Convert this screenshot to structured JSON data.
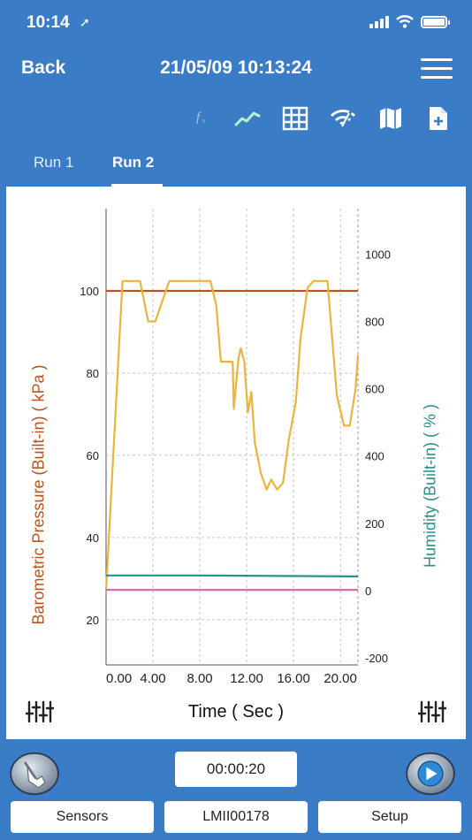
{
  "status_bar": {
    "time": "10:14",
    "location_arrow": "➚"
  },
  "nav": {
    "back_label": "Back",
    "title": "21/05/09 10:13:24"
  },
  "toolbar": {
    "icons": [
      "function-icon",
      "line-graph-icon",
      "table-icon",
      "wireless-icon",
      "map-icon",
      "add-page-icon"
    ],
    "function_symbol": "fx"
  },
  "tabs": [
    {
      "label": "Run 1",
      "active": false
    },
    {
      "label": "Run 2",
      "active": true
    }
  ],
  "colors": {
    "header": "#3a7cc6",
    "pressure": "#b5551f",
    "humidity": "#2d9089",
    "series_yellow": "#e8b53e",
    "series_teal": "#2d8f8f",
    "series_pink": "#d86ab8"
  },
  "chart_data": {
    "type": "line",
    "xlabel": "Time ( Sec )",
    "ylabel_left": "Barometric Pressure (Built-in) ( kPa )",
    "ylabel_right": "Humidity (Built-in) ( % )",
    "x_ticks": [
      "0.00",
      "4.00",
      "8.00",
      "12.00",
      "16.00",
      "20.00"
    ],
    "y_left_ticks": [
      "20",
      "40",
      "60",
      "80",
      "100"
    ],
    "y_right_ticks": [
      "-200",
      "0",
      "200",
      "400",
      "600",
      "800",
      "1000"
    ],
    "xlim": [
      0,
      21.5
    ],
    "ylim_left": [
      9,
      120
    ],
    "ylim_right": [
      -221,
      1135
    ],
    "grid": true,
    "series": [
      {
        "axis": "left",
        "color": "#b5551f",
        "x": [
          0,
          21.5
        ],
        "y": [
          100,
          100
        ]
      },
      {
        "axis": "right",
        "color": "#e8b53e",
        "x": [
          0,
          1.4,
          2.9,
          3.6,
          4.2,
          4.7,
          5.4,
          8.9,
          9.4,
          9.8,
          10.8,
          10.9,
          11.3,
          11.5,
          11.8,
          12.1,
          12.4,
          12.7,
          13.2,
          13.7,
          14.1,
          14.6,
          15.1,
          15.6,
          16.2,
          16.6,
          17.2,
          17.7,
          18.9,
          19.7,
          20.3,
          20.8,
          21.3,
          21.5
        ],
        "y": [
          0,
          920,
          920,
          800,
          800,
          850,
          920,
          920,
          850,
          680,
          680,
          540,
          690,
          720,
          680,
          530,
          590,
          440,
          350,
          300,
          330,
          300,
          320,
          450,
          560,
          750,
          900,
          920,
          920,
          580,
          490,
          490,
          600,
          700
        ]
      },
      {
        "axis": "right",
        "color": "#2d8f8f",
        "x": [
          0,
          7.5,
          21.5
        ],
        "y": [
          45,
          45,
          42
        ]
      },
      {
        "axis": "right",
        "color": "#d86ab8",
        "x": [
          0,
          21.5
        ],
        "y": [
          2,
          2
        ]
      }
    ]
  },
  "timer": {
    "value": "00:00:20"
  },
  "bottom_buttons": {
    "sensors": "Sensors",
    "device": "LMII00178",
    "setup": "Setup"
  }
}
